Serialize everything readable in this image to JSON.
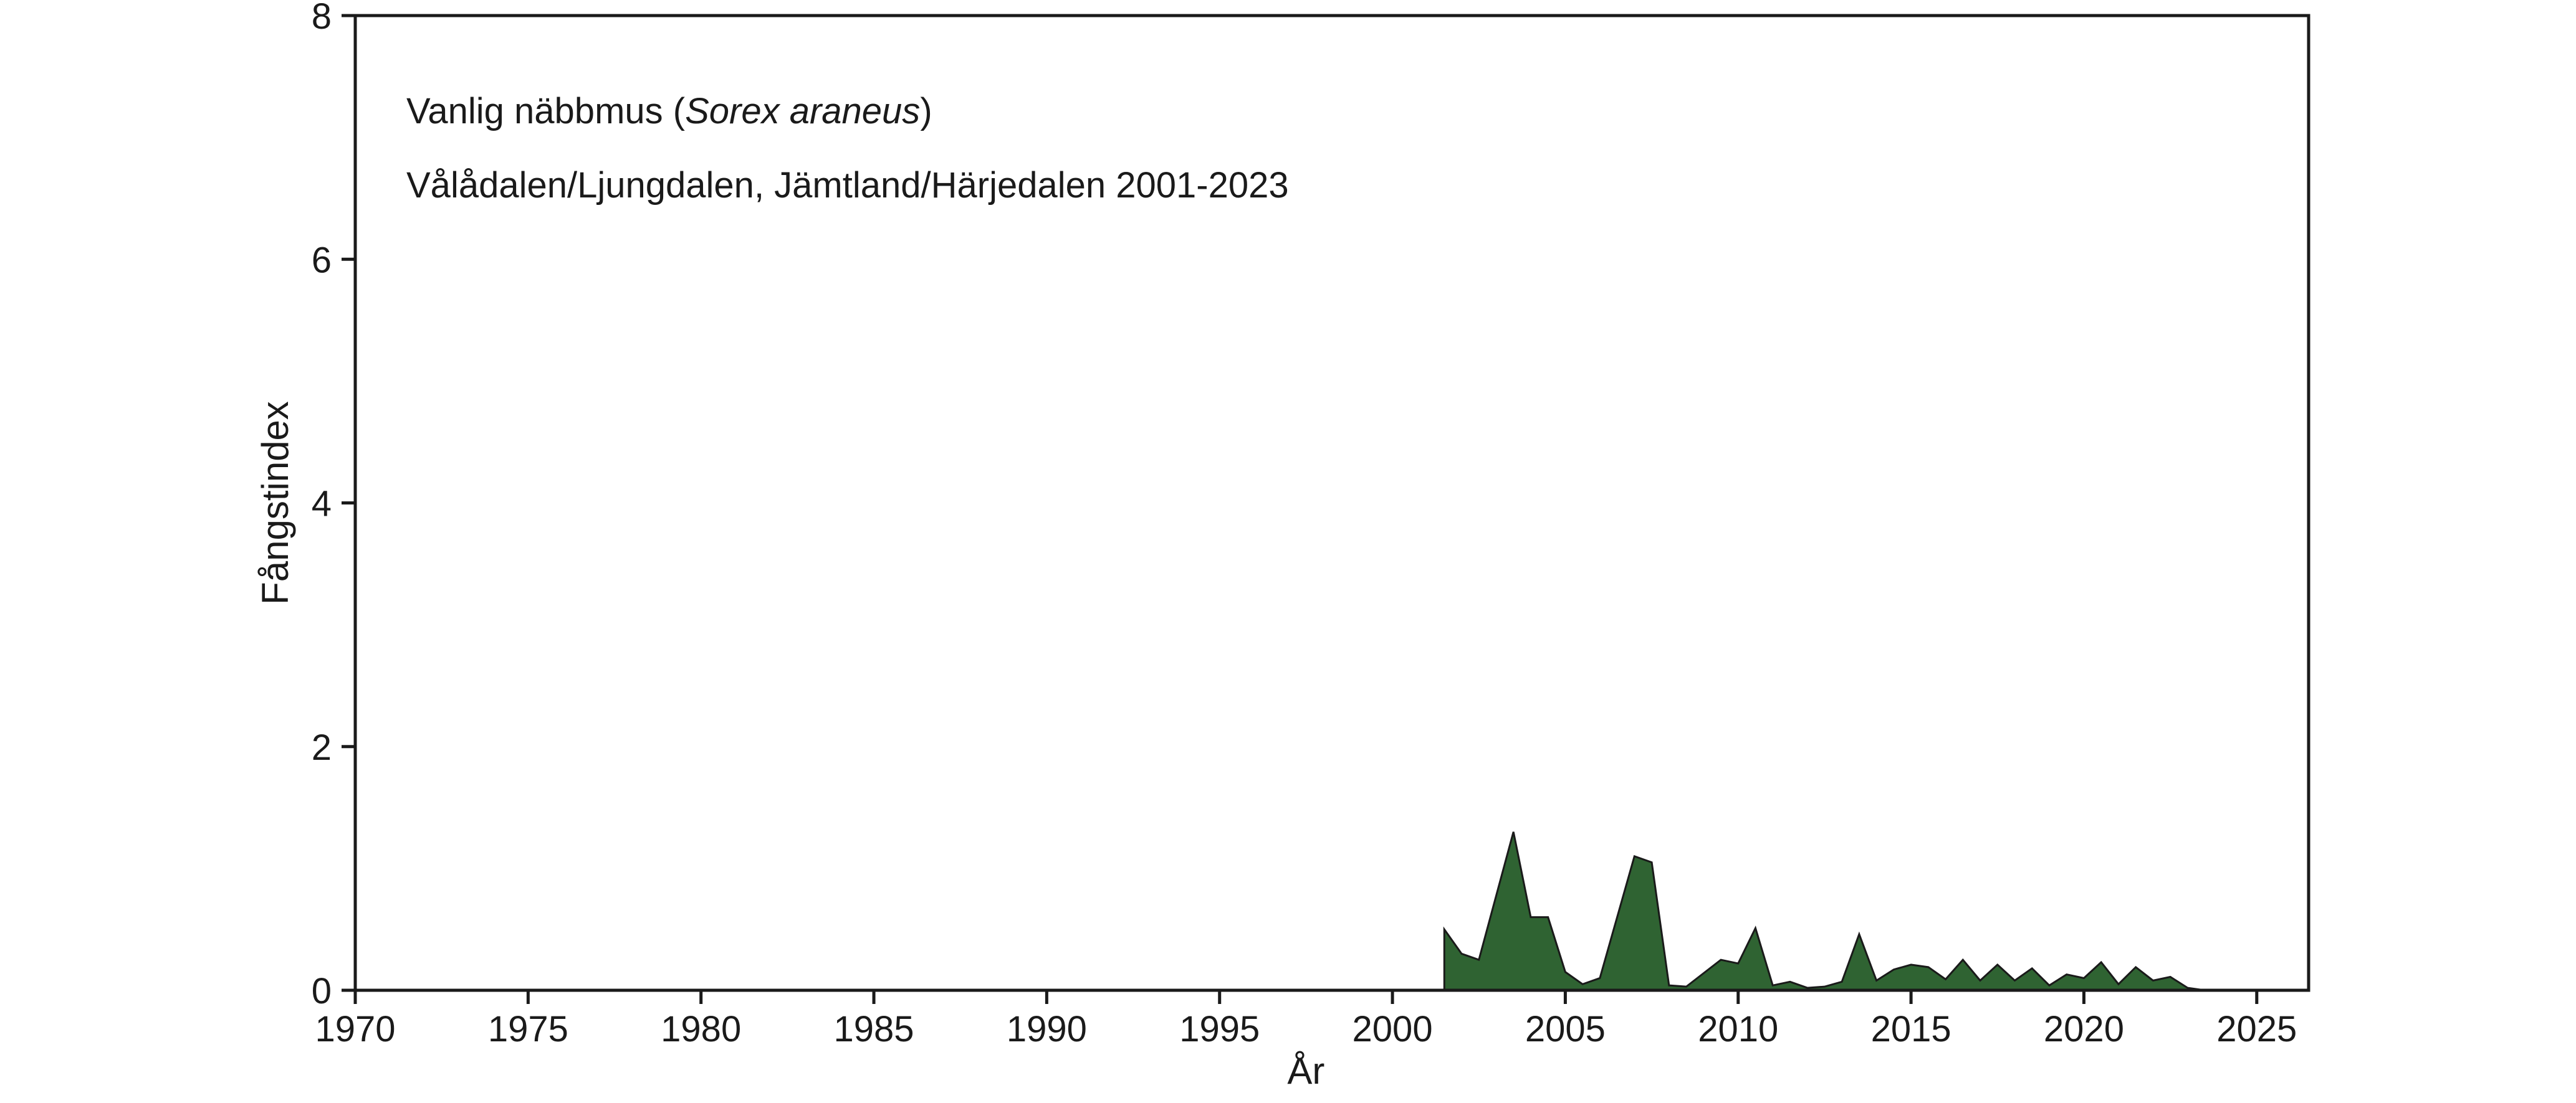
{
  "chart_data": {
    "type": "area",
    "title": "Vanlig näbbmus (",
    "title_italic": "Sorex araneus",
    "title_close": ")",
    "subtitle": "Vålådalen/Ljungdalen, Jämtland/Härjedalen 2001-2023",
    "xlabel": "År",
    "ylabel": "Fångstindex",
    "xlim": [
      1970,
      2026.5
    ],
    "ylim": [
      0,
      8
    ],
    "x_ticks": [
      1970,
      1975,
      1980,
      1985,
      1990,
      1995,
      2000,
      2005,
      2010,
      2015,
      2020,
      2025
    ],
    "y_ticks": [
      0,
      2,
      4,
      6,
      8
    ],
    "fill_color": "#2f6332",
    "line_color": "#1a1a1a",
    "grid": false,
    "legend": "none",
    "series": [
      {
        "x": [
          2001.5,
          2002.0,
          2002.5,
          2003.5,
          2004.0,
          2004.5,
          2005.0,
          2005.5,
          2006.0,
          2007.0,
          2007.5,
          2008.0,
          2008.5,
          2009.5,
          2010.0,
          2010.5,
          2011.0,
          2011.5,
          2012.0,
          2012.5,
          2013.0,
          2013.5,
          2014.0,
          2014.5,
          2015.0,
          2015.5,
          2016.0,
          2016.5,
          2017.0,
          2017.5,
          2018.0,
          2018.5,
          2019.0,
          2019.5,
          2020.0,
          2020.5,
          2021.0,
          2021.5,
          2022.0,
          2022.5,
          2023.0,
          2023.5
        ],
        "y": [
          0.5,
          0.3,
          0.25,
          1.3,
          0.6,
          0.6,
          0.15,
          0.05,
          0.1,
          1.1,
          1.05,
          0.04,
          0.03,
          0.25,
          0.22,
          0.51,
          0.04,
          0.07,
          0.02,
          0.03,
          0.07,
          0.46,
          0.08,
          0.17,
          0.21,
          0.19,
          0.09,
          0.25,
          0.08,
          0.21,
          0.08,
          0.18,
          0.04,
          0.13,
          0.1,
          0.23,
          0.05,
          0.19,
          0.08,
          0.11,
          0.02,
          0.0
        ]
      }
    ]
  }
}
